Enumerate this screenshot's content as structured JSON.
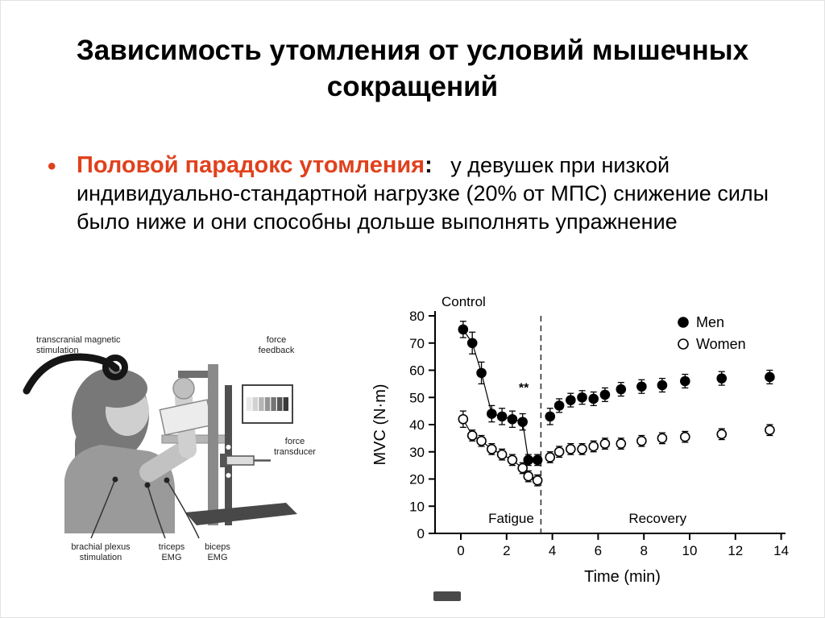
{
  "slide": {
    "title_line1": "Зависимость утомления от условий мышечных",
    "title_line2": "сокращений",
    "accent_color": "#e0411d"
  },
  "bullet": {
    "marker": "•",
    "lead": "Половой парадокс утомления",
    "colon": ":",
    "body": "   у девушек при низкой индивидуально-стандартной нагрузке (20% от МПС) снижение силы было ниже и они способны дольше выполнять упражнение"
  },
  "diagram": {
    "labels": {
      "tms": "transcranial magnetic\nstimulation",
      "force_feedback": "force\nfeedback",
      "force_transducer": "force\ntransducer",
      "brachial": "brachial plexus\nstimulation",
      "triceps": "triceps\nEMG",
      "biceps": "biceps\nEMG"
    }
  },
  "chart_data": {
    "type": "scatter",
    "title": "Control",
    "xlabel": "Time (min)",
    "ylabel": "MVC (N·m)",
    "ylim": [
      0,
      80
    ],
    "yticks": [
      0,
      10,
      20,
      30,
      40,
      50,
      60,
      70,
      80
    ],
    "xticks": [
      0,
      2,
      4,
      6,
      8,
      10,
      12,
      14
    ],
    "grid": false,
    "legend_position": "top-right",
    "phase_divider_x": 3.5,
    "phases": [
      {
        "label": "Fatigue",
        "x": 2.2
      },
      {
        "label": "Recovery",
        "x": 8.6
      }
    ],
    "annotation": {
      "text": "**",
      "x": 2.75,
      "y": 52
    },
    "legend": [
      {
        "label": "Men",
        "marker": "filled"
      },
      {
        "label": "Women",
        "marker": "open"
      }
    ],
    "series": [
      {
        "name": "Men",
        "marker": "filled",
        "fatigue": {
          "x": [
            0.1,
            0.5,
            0.9,
            1.35,
            1.8,
            2.25,
            2.7,
            2.95,
            3.35
          ],
          "y": [
            75,
            70,
            59,
            44,
            43,
            42,
            41,
            27,
            27
          ],
          "err": [
            3,
            4,
            4,
            3,
            3,
            3,
            3,
            2,
            2
          ]
        },
        "recovery": {
          "x": [
            3.9,
            4.3,
            4.8,
            5.3,
            5.8,
            6.3,
            7.0,
            7.9,
            8.8,
            9.8,
            11.4,
            13.5
          ],
          "y": [
            43,
            47,
            49,
            50,
            49.5,
            51,
            53,
            54,
            54.5,
            56,
            57,
            57.5
          ],
          "err": [
            3,
            2.5,
            2.5,
            2.5,
            2.5,
            2.5,
            2.5,
            2.5,
            2.5,
            2.5,
            2.5,
            2.5
          ]
        }
      },
      {
        "name": "Women",
        "marker": "open",
        "fatigue": {
          "x": [
            0.1,
            0.5,
            0.9,
            1.35,
            1.8,
            2.25,
            2.7,
            2.95,
            3.35
          ],
          "y": [
            42,
            36,
            34,
            31,
            29,
            27,
            24,
            21,
            19.5
          ],
          "err": [
            3,
            2,
            2,
            2,
            2,
            2,
            2,
            2,
            2
          ]
        },
        "recovery": {
          "x": [
            3.9,
            4.3,
            4.8,
            5.3,
            5.8,
            6.3,
            7.0,
            7.9,
            8.8,
            9.8,
            11.4,
            13.5
          ],
          "y": [
            28,
            30,
            31,
            31,
            32,
            33,
            33,
            34,
            35,
            35.5,
            36.5,
            38
          ],
          "err": [
            2,
            2,
            2,
            2,
            2,
            2,
            2,
            2,
            2,
            2,
            2,
            2
          ]
        }
      }
    ]
  }
}
